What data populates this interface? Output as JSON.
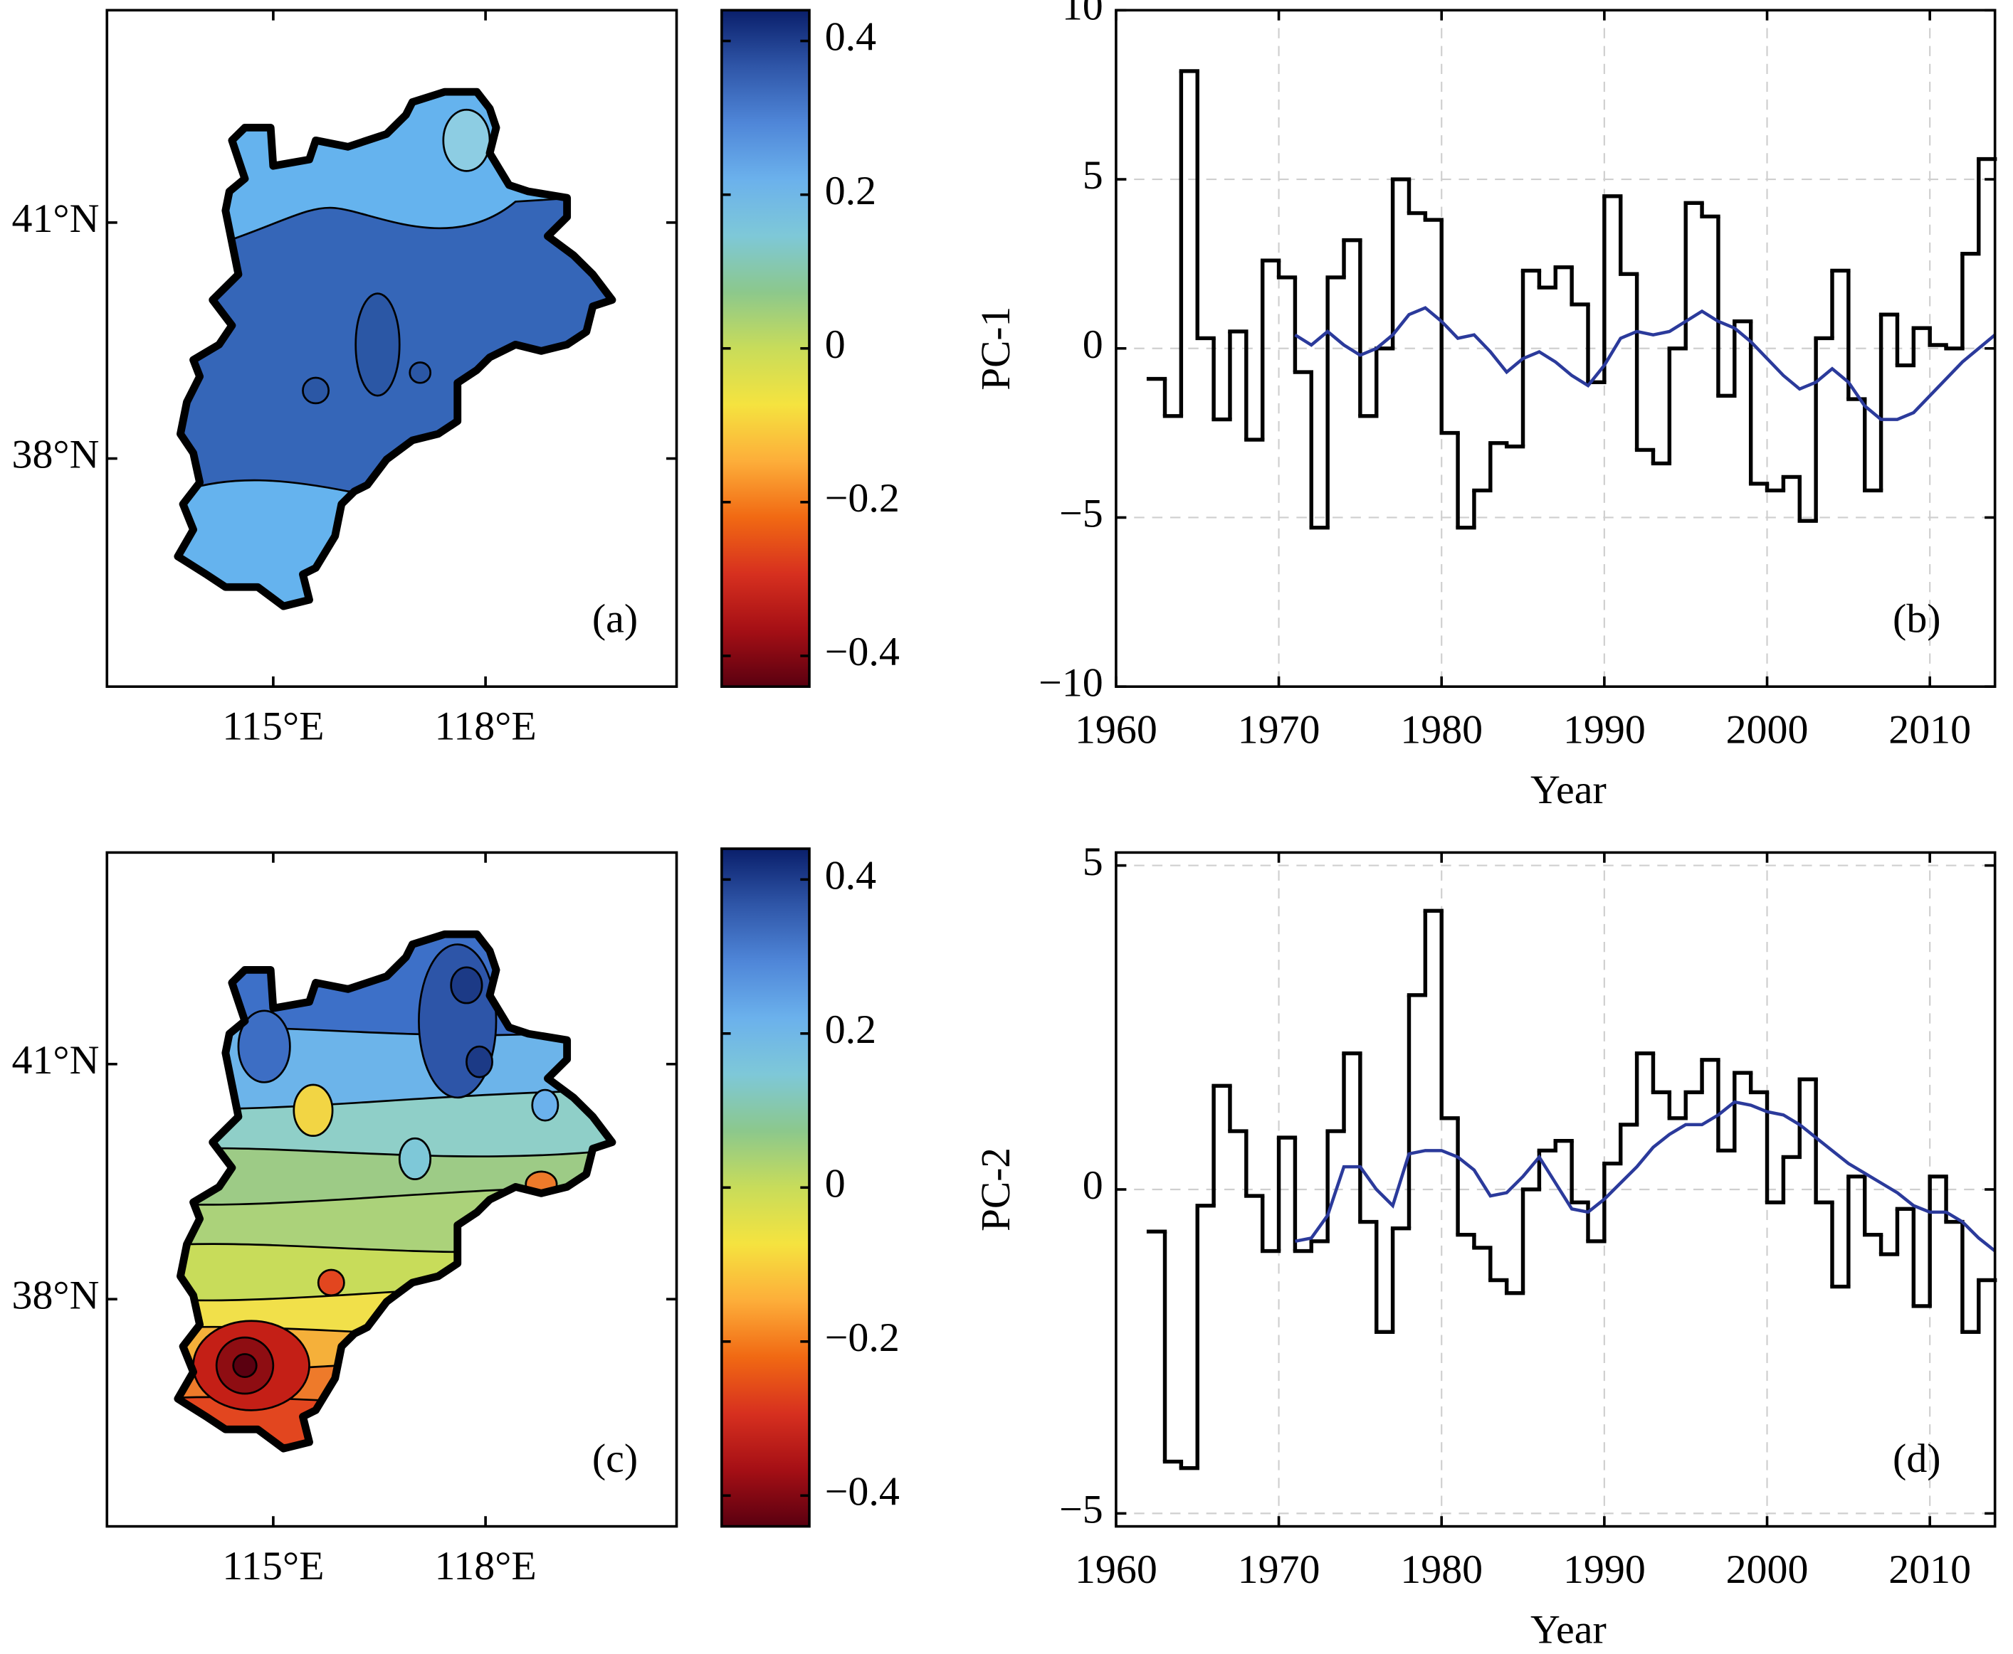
{
  "chart_data": [
    {
      "type": "map",
      "label": "(a)",
      "xlim": [
        112.65,
        120.7
      ],
      "ylim": [
        35.1,
        43.7
      ],
      "xticks": [
        {
          "value": 115,
          "label": "115°E"
        },
        {
          "value": 118,
          "label": "118°E"
        }
      ],
      "yticks": [
        {
          "value": 38,
          "label": "38°N"
        },
        {
          "value": 41,
          "label": "41°N"
        }
      ],
      "colorbar": {
        "clim": [
          -0.44,
          0.44
        ],
        "ticks": [
          0.4,
          0.2,
          0,
          {
            "value": -0.2,
            "label": "−0.2"
          },
          {
            "value": -0.4,
            "label": "−0.4"
          }
        ],
        "colormap": [
          "#5a0010",
          "#a50f15",
          "#d7301f",
          "#f16913",
          "#fdae3a",
          "#f5e33f",
          "#c8dc5a",
          "#8cc88c",
          "#7ec8d8",
          "#6bb1ec",
          "#4f86d8",
          "#2f56a8",
          "#0a1f6b"
        ]
      }
    },
    {
      "type": "line",
      "label": "(b)",
      "xlabel": "Year",
      "ylabel": "PC-1",
      "xlim": [
        1960,
        2014
      ],
      "ylim": [
        -10,
        10
      ],
      "xticks": [
        1960,
        1970,
        1980,
        1990,
        2000,
        2010
      ],
      "yticks": [
        10,
        5,
        0,
        {
          "value": -5,
          "label": "−5"
        },
        {
          "value": -10,
          "label": "−10"
        }
      ],
      "grid": true,
      "series": [
        {
          "color": "#000000",
          "step": true,
          "x": [
            1962,
            1963,
            1964,
            1965,
            1966,
            1967,
            1968,
            1969,
            1970,
            1971,
            1972,
            1973,
            1974,
            1975,
            1976,
            1977,
            1978,
            1979,
            1980,
            1981,
            1982,
            1983,
            1984,
            1985,
            1986,
            1987,
            1988,
            1989,
            1990,
            1991,
            1992,
            1993,
            1994,
            1995,
            1996,
            1997,
            1998,
            1999,
            2000,
            2001,
            2002,
            2003,
            2004,
            2005,
            2006,
            2007,
            2008,
            2009,
            2010,
            2011,
            2012,
            2013
          ],
          "values": [
            -0.9,
            -2.0,
            8.2,
            0.3,
            -2.1,
            0.5,
            -2.7,
            2.6,
            2.1,
            -0.7,
            -5.3,
            2.1,
            3.2,
            -2.0,
            0.0,
            5.0,
            4.0,
            3.8,
            -2.5,
            -5.3,
            -4.2,
            -2.8,
            -2.9,
            2.3,
            1.8,
            2.4,
            1.3,
            -1.0,
            4.5,
            2.2,
            -3.0,
            -3.4,
            0.0,
            4.3,
            3.9,
            -1.4,
            0.8,
            -4.0,
            -4.2,
            -3.8,
            -5.1,
            0.3,
            2.3,
            -1.5,
            -4.2,
            1.0,
            -0.5,
            0.6,
            0.1,
            0.0,
            2.8,
            5.6
          ]
        },
        {
          "color": "#2b3a9b",
          "x": [
            1971,
            1972,
            1973,
            1974,
            1975,
            1976,
            1977,
            1978,
            1979,
            1980,
            1981,
            1982,
            1983,
            1984,
            1985,
            1986,
            1987,
            1988,
            1989,
            1990,
            1991,
            1992,
            1993,
            1994,
            1995,
            1996,
            1997,
            1998,
            1999,
            2000,
            2001,
            2002,
            2003,
            2004,
            2005,
            2006,
            2007,
            2008,
            2009,
            2010,
            2011,
            2012,
            2013,
            2014
          ],
          "values": [
            0.4,
            0.1,
            0.5,
            0.1,
            -0.2,
            0.0,
            0.4,
            1.0,
            1.2,
            0.8,
            0.3,
            0.4,
            -0.1,
            -0.7,
            -0.3,
            -0.1,
            -0.4,
            -0.8,
            -1.1,
            -0.5,
            0.3,
            0.5,
            0.4,
            0.5,
            0.8,
            1.1,
            0.8,
            0.6,
            0.2,
            -0.3,
            -0.8,
            -1.2,
            -1.0,
            -0.6,
            -1.0,
            -1.7,
            -2.1,
            -2.1,
            -1.9,
            -1.4,
            -0.9,
            -0.4,
            0.0,
            0.4
          ]
        }
      ]
    },
    {
      "type": "map",
      "label": "(c)",
      "xlim": [
        112.65,
        120.7
      ],
      "ylim": [
        35.1,
        43.7
      ],
      "xticks": [
        {
          "value": 115,
          "label": "115°E"
        },
        {
          "value": 118,
          "label": "118°E"
        }
      ],
      "yticks": [
        {
          "value": 38,
          "label": "38°N"
        },
        {
          "value": 41,
          "label": "41°N"
        }
      ],
      "colorbar": {
        "clim": [
          -0.44,
          0.44
        ],
        "ticks": [
          0.4,
          0.2,
          0,
          {
            "value": -0.2,
            "label": "−0.2"
          },
          {
            "value": -0.4,
            "label": "−0.4"
          }
        ],
        "colormap": [
          "#5a0010",
          "#a50f15",
          "#d7301f",
          "#f16913",
          "#fdae3a",
          "#f5e33f",
          "#c8dc5a",
          "#8cc88c",
          "#7ec8d8",
          "#6bb1ec",
          "#4f86d8",
          "#2f56a8",
          "#0a1f6b"
        ]
      }
    },
    {
      "type": "line",
      "label": "(d)",
      "xlabel": "Year",
      "ylabel": "PC-2",
      "xlim": [
        1960,
        2014
      ],
      "ylim": [
        -5.2,
        5.2
      ],
      "xticks": [
        1960,
        1970,
        1980,
        1990,
        2000,
        2010
      ],
      "yticks": [
        5,
        0,
        {
          "value": -5,
          "label": "−5"
        }
      ],
      "grid": true,
      "series": [
        {
          "color": "#000000",
          "step": true,
          "x": [
            1962,
            1963,
            1964,
            1965,
            1966,
            1967,
            1968,
            1969,
            1970,
            1971,
            1972,
            1973,
            1974,
            1975,
            1976,
            1977,
            1978,
            1979,
            1980,
            1981,
            1982,
            1983,
            1984,
            1985,
            1986,
            1987,
            1988,
            1989,
            1990,
            1991,
            1992,
            1993,
            1994,
            1995,
            1996,
            1997,
            1998,
            1999,
            2000,
            2001,
            2002,
            2003,
            2004,
            2005,
            2006,
            2007,
            2008,
            2009,
            2010,
            2011,
            2012,
            2013
          ],
          "values": [
            -0.65,
            -4.2,
            -4.3,
            -0.25,
            1.6,
            0.9,
            -0.1,
            -0.95,
            0.8,
            -0.95,
            -0.8,
            0.9,
            2.1,
            -0.5,
            -2.2,
            -0.6,
            3.0,
            4.3,
            1.1,
            -0.7,
            -0.9,
            -1.4,
            -1.6,
            0.0,
            0.6,
            0.75,
            -0.2,
            -0.8,
            0.4,
            1.0,
            2.1,
            1.5,
            1.1,
            1.5,
            2.0,
            0.6,
            1.8,
            1.5,
            -0.2,
            0.5,
            1.7,
            -0.2,
            -1.5,
            0.2,
            -0.7,
            -1.0,
            -0.3,
            -1.8,
            0.2,
            -0.5,
            -2.2,
            -1.4
          ]
        },
        {
          "color": "#2b3a9b",
          "x": [
            1971,
            1972,
            1973,
            1974,
            1975,
            1976,
            1977,
            1978,
            1979,
            1980,
            1981,
            1982,
            1983,
            1984,
            1985,
            1986,
            1987,
            1988,
            1989,
            1990,
            1991,
            1992,
            1993,
            1994,
            1995,
            1996,
            1997,
            1998,
            1999,
            2000,
            2001,
            2002,
            2003,
            2004,
            2005,
            2006,
            2007,
            2008,
            2009,
            2010,
            2011,
            2012,
            2013,
            2014
          ],
          "values": [
            -0.8,
            -0.75,
            -0.4,
            0.35,
            0.35,
            0.0,
            -0.25,
            0.55,
            0.6,
            0.6,
            0.5,
            0.3,
            -0.1,
            -0.05,
            0.2,
            0.5,
            0.1,
            -0.3,
            -0.35,
            -0.15,
            0.1,
            0.35,
            0.65,
            0.85,
            1.0,
            1.0,
            1.15,
            1.35,
            1.3,
            1.2,
            1.15,
            1.0,
            0.8,
            0.6,
            0.4,
            0.25,
            0.1,
            -0.05,
            -0.25,
            -0.35,
            -0.35,
            -0.5,
            -0.75,
            -0.95
          ]
        }
      ]
    }
  ]
}
